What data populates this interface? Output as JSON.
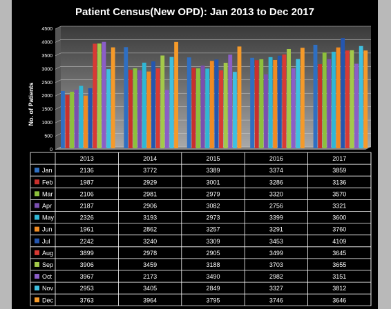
{
  "chart_data": {
    "type": "bar",
    "title": "Patient Census(New OPD): Jan 2013 to Dec 2017",
    "ylabel": "No. of Patients",
    "xlabel": "",
    "ylim": [
      0,
      4500
    ],
    "yticks": [
      0,
      500,
      1000,
      1500,
      2000,
      2500,
      3000,
      3500,
      4000,
      4500
    ],
    "grid": true,
    "legend": "data-table",
    "categories": [
      "2013",
      "2014",
      "2015",
      "2016",
      "2017"
    ],
    "series": [
      {
        "name": "Jan",
        "color": "#2f6fc2",
        "values": [
          2136,
          3772,
          3389,
          3374,
          3859
        ]
      },
      {
        "name": "Feb",
        "color": "#c9302c",
        "values": [
          1987,
          2929,
          3001,
          3286,
          3136
        ]
      },
      {
        "name": "Mar",
        "color": "#8dc03c",
        "values": [
          2106,
          2981,
          2979,
          3320,
          3570
        ]
      },
      {
        "name": "Apr",
        "color": "#7a4fb0",
        "values": [
          2187,
          2906,
          3082,
          2756,
          3321
        ]
      },
      {
        "name": "May",
        "color": "#2fb7d6",
        "values": [
          2326,
          3193,
          2973,
          3399,
          3600
        ]
      },
      {
        "name": "Jun",
        "color": "#f08b22",
        "values": [
          1961,
          2862,
          3257,
          3291,
          3760
        ]
      },
      {
        "name": "Jul",
        "color": "#2456b0",
        "values": [
          2242,
          3240,
          3309,
          3453,
          4109
        ]
      },
      {
        "name": "Aug",
        "color": "#d83a34",
        "values": [
          3899,
          2978,
          2905,
          3499,
          3645
        ]
      },
      {
        "name": "Sep",
        "color": "#a3c94a",
        "values": [
          3906,
          3459,
          3188,
          3703,
          3655
        ]
      },
      {
        "name": "Oct",
        "color": "#8b5ec7",
        "values": [
          3967,
          2173,
          3490,
          2982,
          3151
        ]
      },
      {
        "name": "Nov",
        "color": "#3fc0e0",
        "values": [
          2953,
          3405,
          2849,
          3327,
          3812
        ]
      },
      {
        "name": "Dec",
        "color": "#f59a2a",
        "values": [
          3763,
          3964,
          3795,
          3746,
          3646
        ]
      }
    ]
  }
}
